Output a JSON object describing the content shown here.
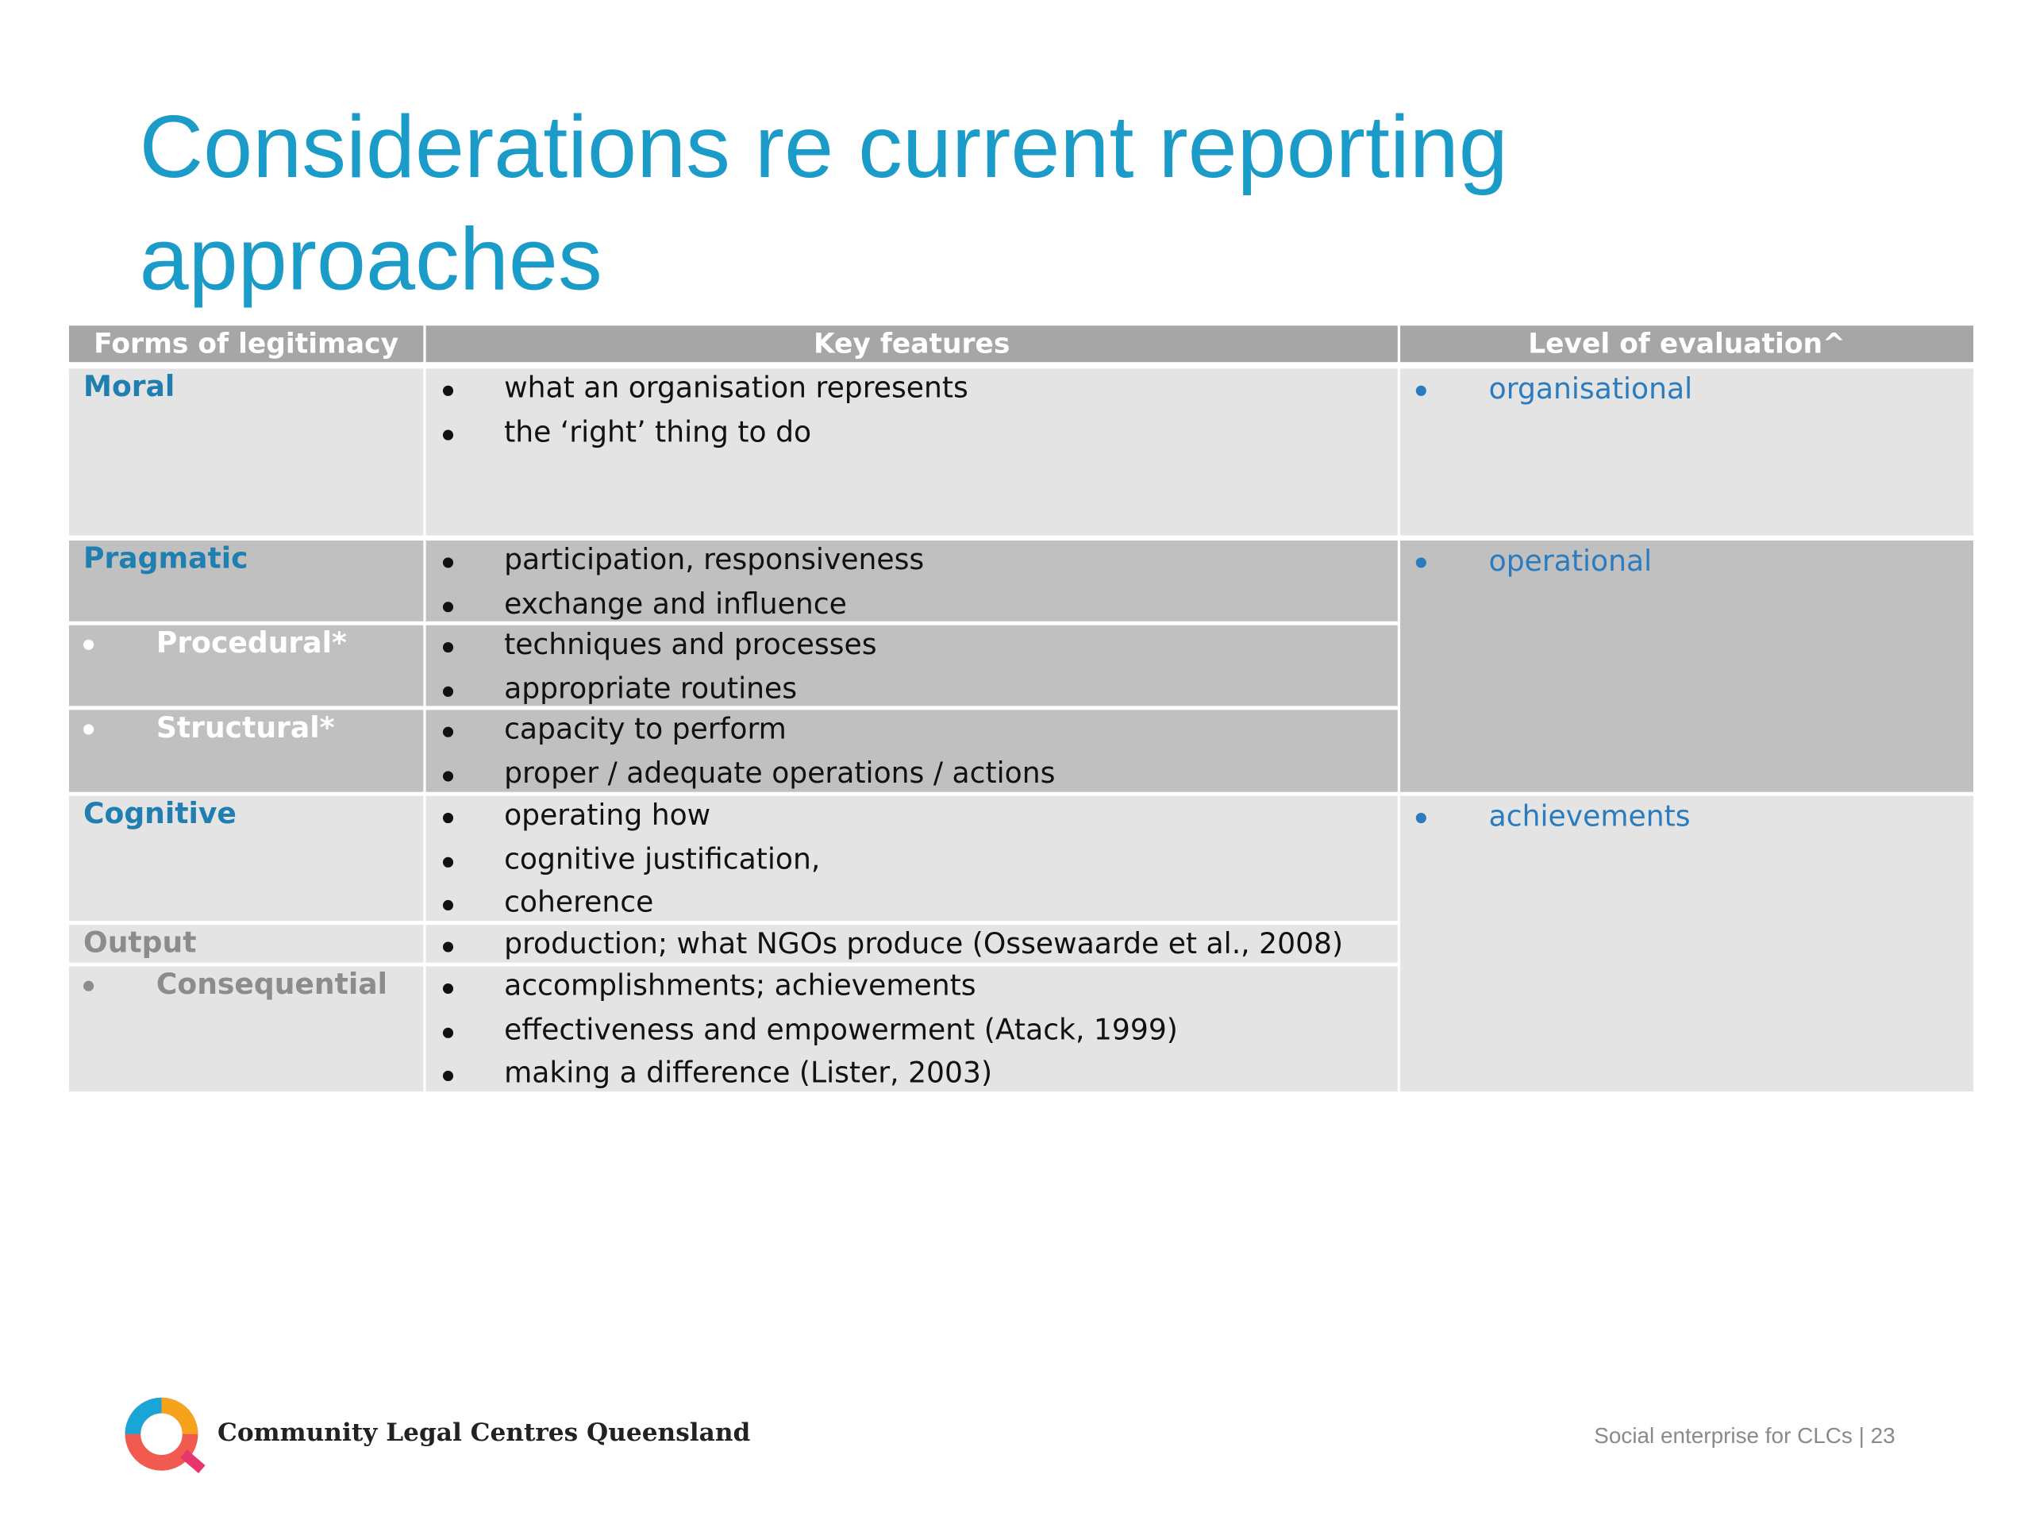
{
  "title": "Considerations re current reporting approaches",
  "table": {
    "headers": [
      "Forms of legitimacy",
      "Key features",
      "Level of evaluation^"
    ],
    "rows": [
      {
        "form": "Moral",
        "features": [
          "what an organisation represents",
          "the ‘right’ thing to do"
        ]
      },
      {
        "form": "Pragmatic",
        "features": [
          "participation, responsiveness",
          "exchange and influence"
        ]
      },
      {
        "form": "Procedural*",
        "features": [
          "techniques and processes",
          "appropriate routines"
        ]
      },
      {
        "form": "Structural*",
        "features": [
          "capacity to perform",
          "proper / adequate operations / actions"
        ]
      },
      {
        "form": "Cognitive",
        "features": [
          "operating how",
          "cognitive justification,",
          "coherence"
        ]
      },
      {
        "form": "Output",
        "features": [
          "production; what NGOs produce (Ossewaarde et al., 2008)"
        ]
      },
      {
        "form": "Consequential",
        "features": [
          "accomplishments; achievements",
          "effectiveness and empowerment (Atack, 1999)",
          "making a difference (Lister, 2003)"
        ]
      }
    ],
    "levels": [
      "organisational",
      "operational",
      "achievements"
    ]
  },
  "footer": {
    "organisation": "Community Legal Centres Queensland",
    "slide_label": "Social enterprise for CLCs | 23"
  }
}
